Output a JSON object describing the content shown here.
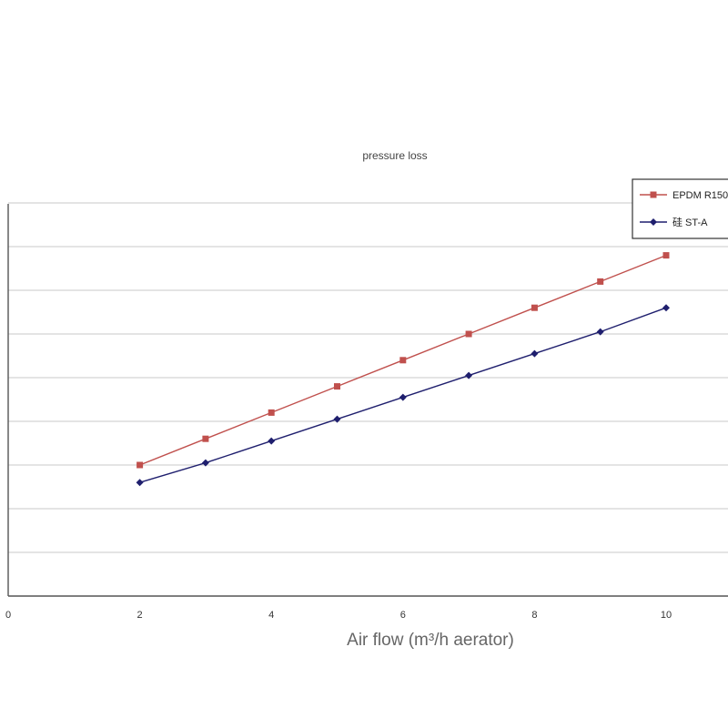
{
  "chart_data": {
    "type": "line",
    "title": "pressure loss",
    "xlabel": "Air flow (m³/h aerator)",
    "ylabel": "",
    "xlim": [
      0,
      11
    ],
    "x_ticks": [
      0,
      2,
      4,
      6,
      8,
      10
    ],
    "ylim": [
      0,
      9
    ],
    "y_gridlines": [
      1,
      2,
      3,
      4,
      5,
      6,
      7,
      8,
      9
    ],
    "grid": true,
    "legend_placement": "top-right",
    "x": [
      2,
      3,
      4,
      5,
      6,
      7,
      8,
      9,
      10
    ],
    "series": [
      {
        "name": "EPDM R150",
        "color": "#c0504d",
        "marker": "square",
        "values": [
          3.0,
          3.6,
          4.2,
          4.8,
          5.4,
          6.0,
          6.6,
          7.2,
          7.8
        ]
      },
      {
        "name": "硅 ST-A",
        "color": "#1f1f6e",
        "marker": "diamond",
        "values": [
          2.6,
          3.05,
          3.55,
          4.05,
          4.55,
          5.05,
          5.55,
          6.05,
          6.6
        ]
      }
    ]
  }
}
